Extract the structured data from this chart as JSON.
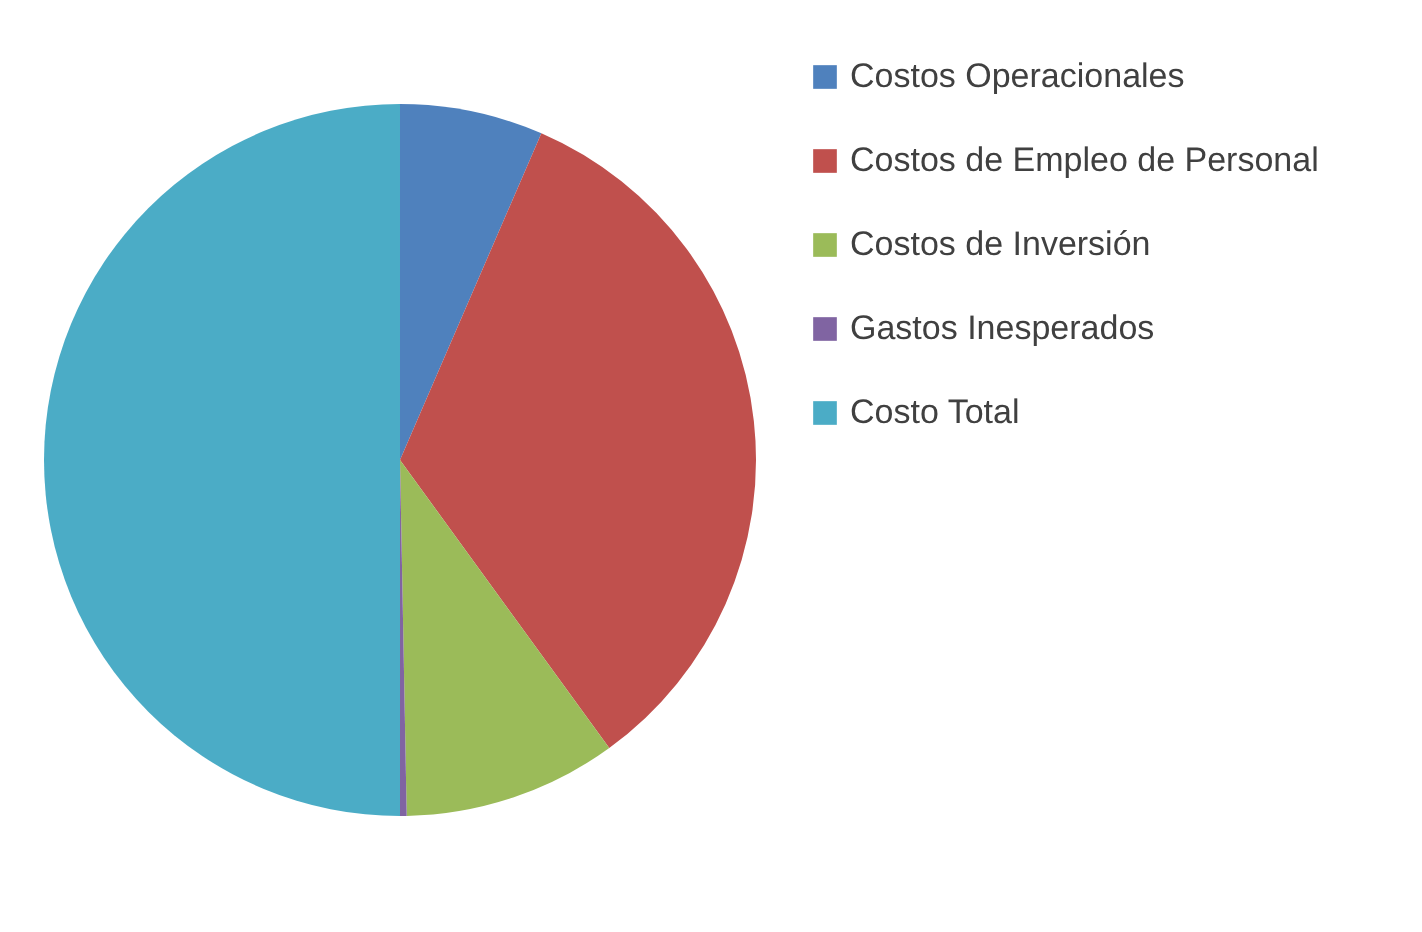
{
  "chart_data": {
    "type": "pie",
    "categories": [
      "Costos Operacionales",
      "Costos de Empleo de Personal",
      "Costos de Inversión",
      "Gastos Inesperados",
      "Costo Total"
    ],
    "values": [
      6.5,
      33.5,
      9.7,
      0.3,
      50
    ],
    "colors": [
      "#4f81bd",
      "#c0504d",
      "#9bbb59",
      "#8064a2",
      "#4bacc6"
    ],
    "legend": "right"
  }
}
